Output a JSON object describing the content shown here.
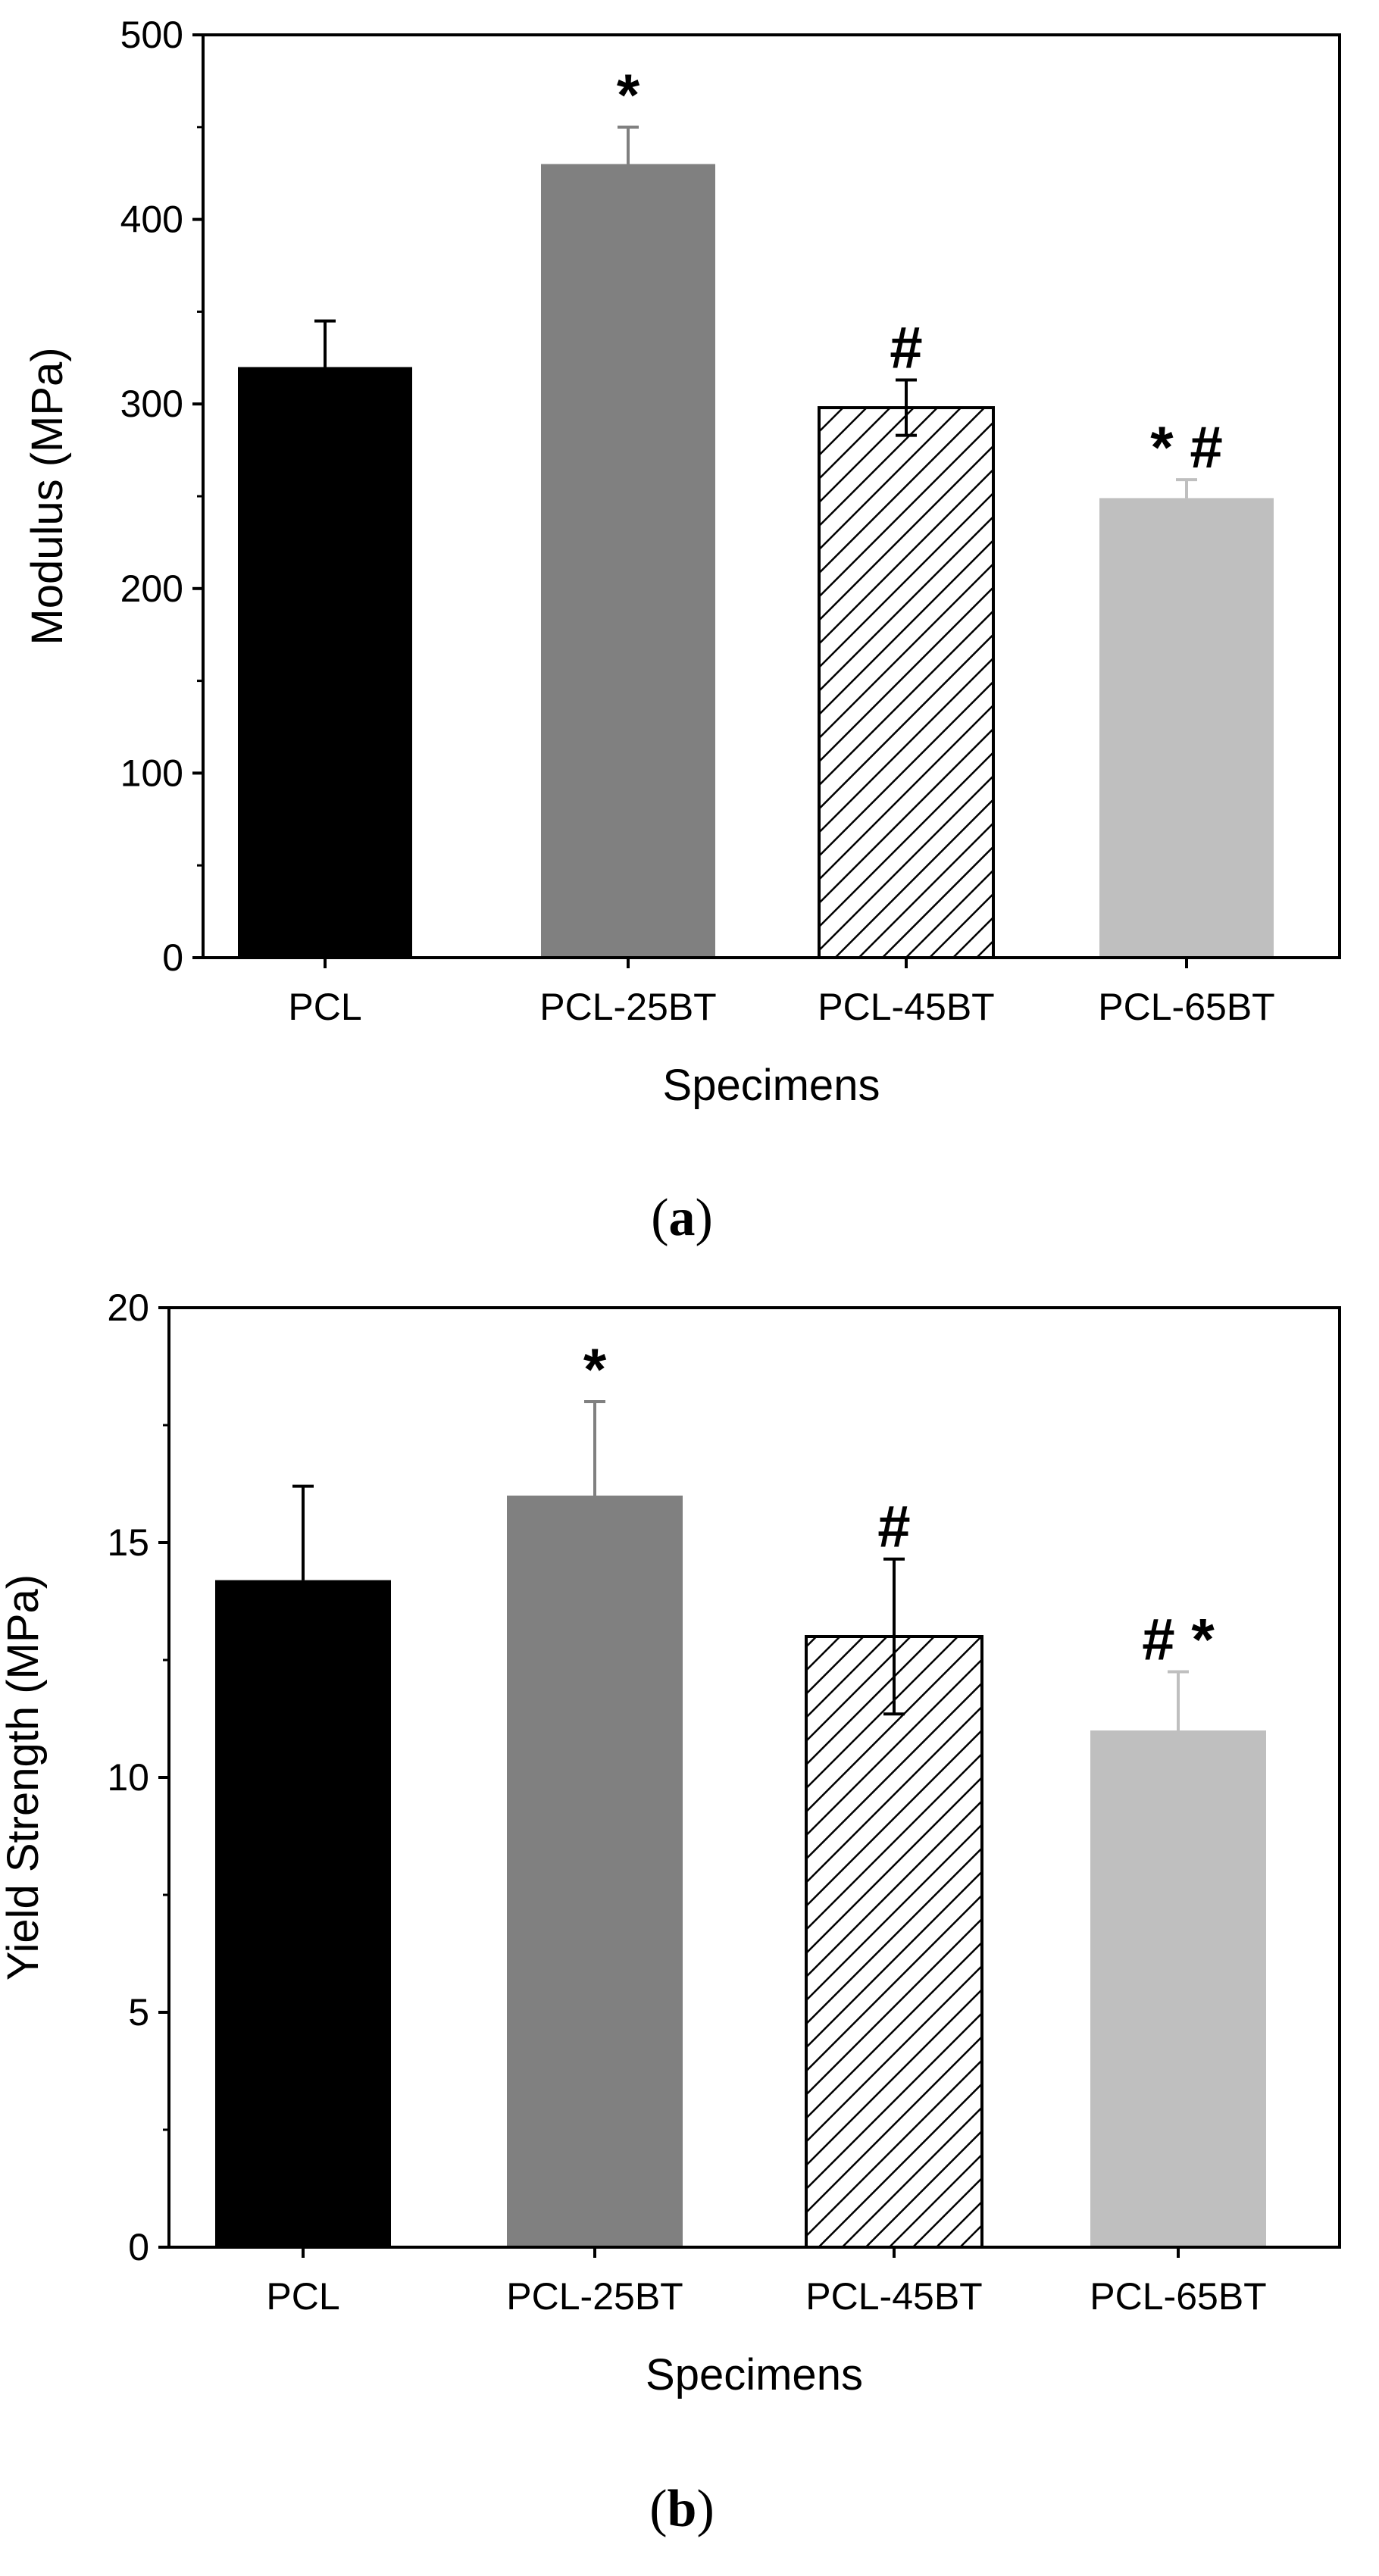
{
  "figure": {
    "panels": [
      {
        "label_open": "(",
        "label_letter": "a",
        "label_close": ")"
      },
      {
        "label_open": "(",
        "label_letter": "b",
        "label_close": ")"
      }
    ]
  },
  "chart_data": [
    {
      "type": "bar",
      "title": "",
      "xlabel": "Specimens",
      "ylabel": "Modulus (MPa)",
      "ylim": [
        0,
        500
      ],
      "yticks": [
        0,
        100,
        200,
        300,
        400,
        500
      ],
      "categories": [
        "PCL",
        "PCL-25BT",
        "PCL-45BT",
        "PCL-65BT"
      ],
      "values": [
        320,
        430,
        298,
        249
      ],
      "errors": [
        25,
        20,
        15,
        10
      ],
      "error_direction": [
        "up",
        "up",
        "both",
        "up"
      ],
      "annotations": [
        "",
        "*",
        "#",
        "* #"
      ],
      "bar_fills": [
        "#000000",
        "#808080",
        "hatch",
        "#bfbfbf"
      ],
      "error_colors": [
        "#000000",
        "#808080",
        "#000000",
        "#bfbfbf"
      ]
    },
    {
      "type": "bar",
      "title": "",
      "xlabel": "Specimens",
      "ylabel": "Yield Strength (MPa)",
      "ylim": [
        0,
        20
      ],
      "yticks": [
        0,
        5,
        10,
        15,
        20
      ],
      "categories": [
        "PCL",
        "PCL-25BT",
        "PCL-45BT",
        "PCL-65BT"
      ],
      "values": [
        14.2,
        16.0,
        13.0,
        11.0
      ],
      "errors": [
        2.0,
        2.0,
        1.65,
        1.25
      ],
      "error_direction": [
        "up",
        "up",
        "both",
        "up"
      ],
      "annotations": [
        "",
        "*",
        "#",
        "#  *"
      ],
      "bar_fills": [
        "#000000",
        "#808080",
        "hatch",
        "#bfbfbf"
      ],
      "error_colors": [
        "#000000",
        "#808080",
        "#000000",
        "#bfbfbf"
      ]
    }
  ]
}
